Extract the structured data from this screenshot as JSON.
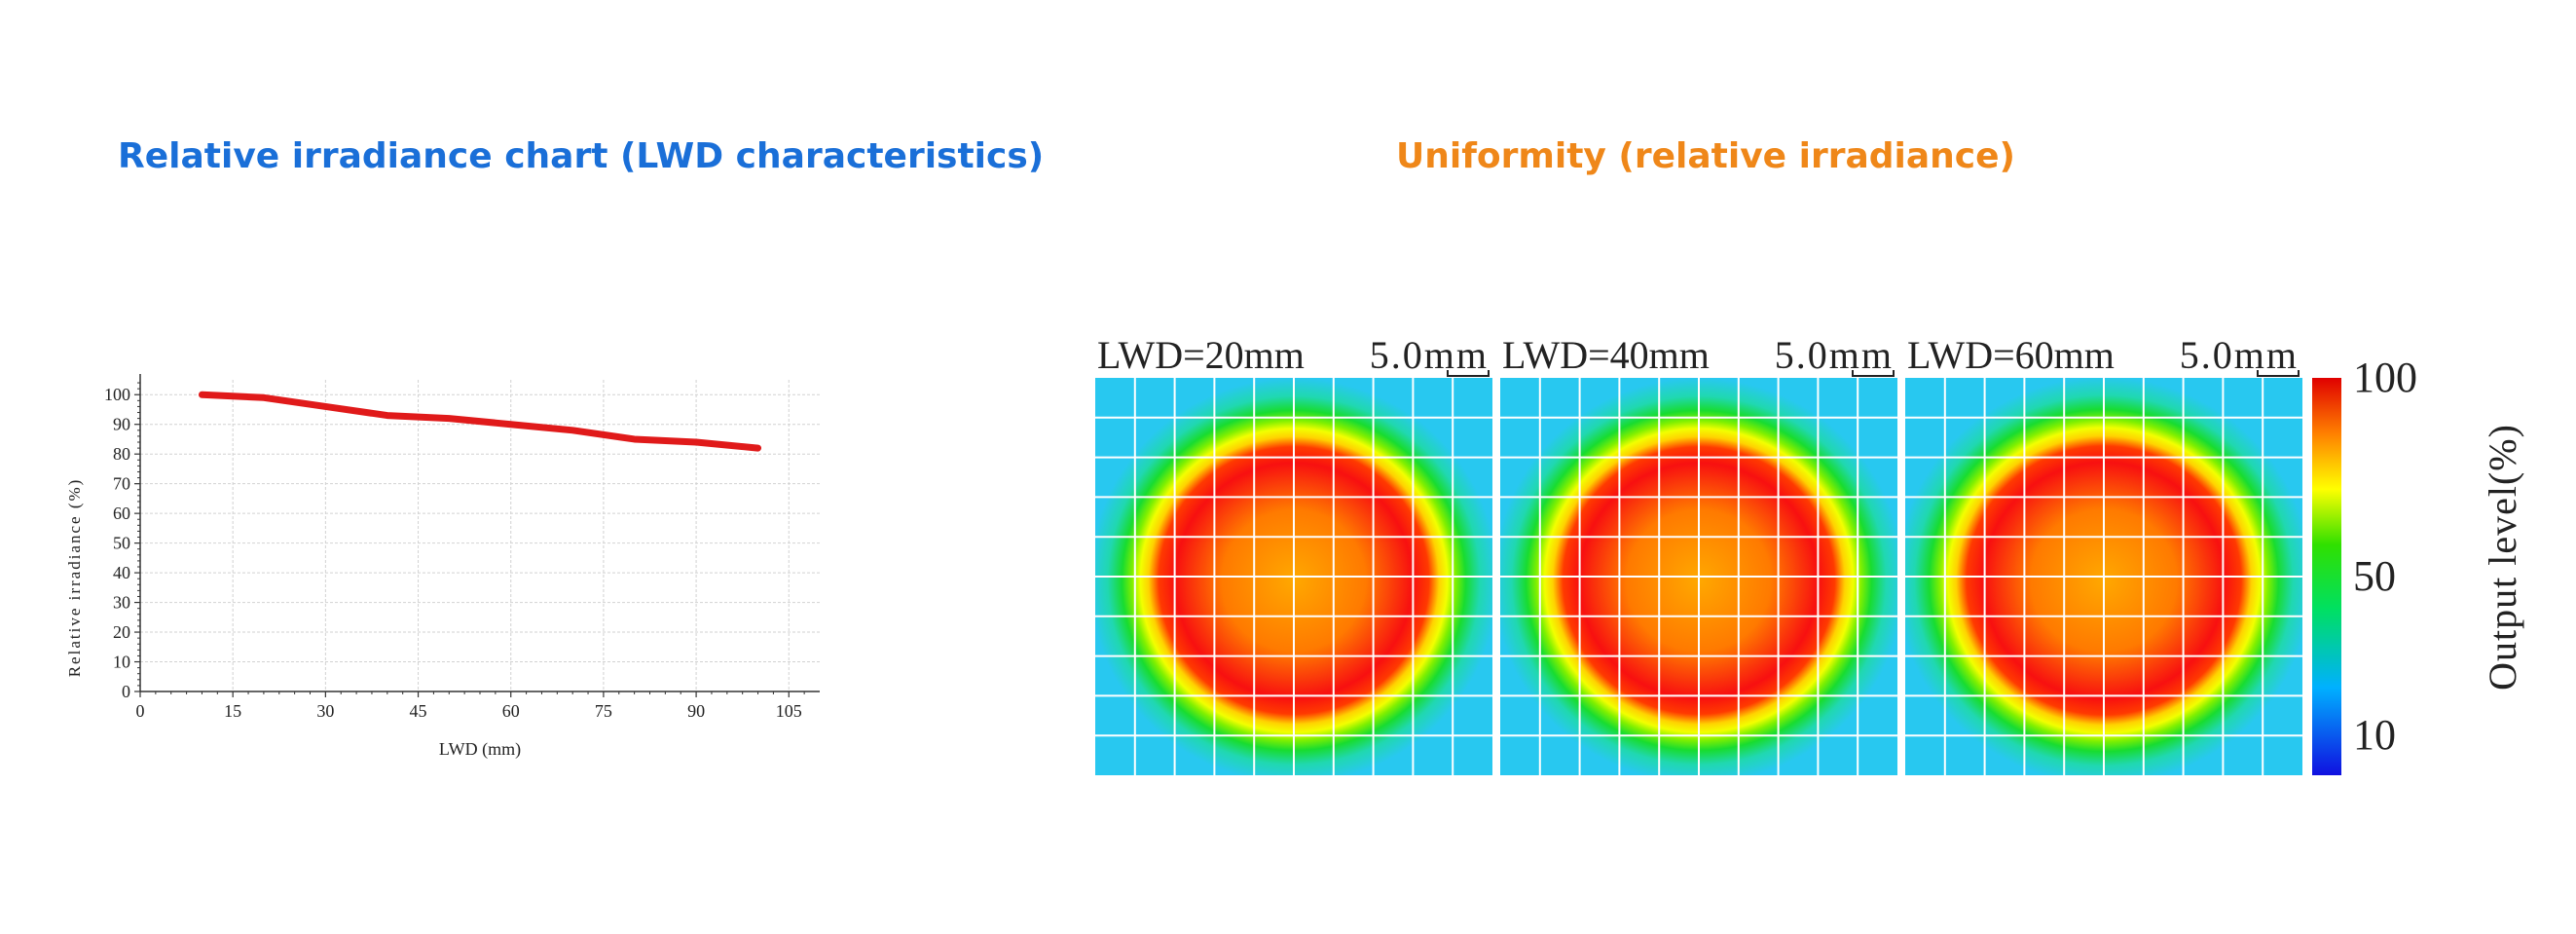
{
  "sections": {
    "left_title": "Relative irradiance chart (LWD characteristics)",
    "right_title": "Uniformity (relative irradiance)"
  },
  "colors": {
    "left_title": "#1a6fd8",
    "right_title": "#ef8719",
    "series_line": "#e01a1a"
  },
  "chart_data": [
    {
      "type": "line",
      "title": "Relative irradiance chart (LWD characteristics)",
      "xlabel": "LWD (mm)",
      "ylabel": "Relative irradiance (%)",
      "xlim": [
        0,
        110
      ],
      "ylim": [
        0,
        105
      ],
      "xticks": [
        0,
        15,
        30,
        45,
        60,
        75,
        90,
        105
      ],
      "yticks": [
        0,
        10,
        20,
        30,
        40,
        50,
        60,
        70,
        80,
        90,
        100
      ],
      "grid": true,
      "series": [
        {
          "name": "Relative irradiance",
          "x": [
            10,
            20,
            30,
            40,
            50,
            60,
            70,
            80,
            90,
            100
          ],
          "y": [
            100,
            99,
            96,
            93,
            92,
            90,
            88,
            85,
            84,
            82
          ]
        }
      ]
    },
    {
      "type": "heatmap",
      "title": "Uniformity (relative irradiance)",
      "panels": [
        {
          "label": "LWD=20mm",
          "scale_label": "5.0mm"
        },
        {
          "label": "LWD=40mm",
          "scale_label": "5.0mm"
        },
        {
          "label": "LWD=60mm",
          "scale_label": "5.0mm"
        }
      ],
      "colorbar": {
        "ticks": [
          100,
          50,
          10
        ],
        "label": "Output level(%)",
        "range": [
          0,
          100
        ]
      },
      "grid": true
    }
  ]
}
